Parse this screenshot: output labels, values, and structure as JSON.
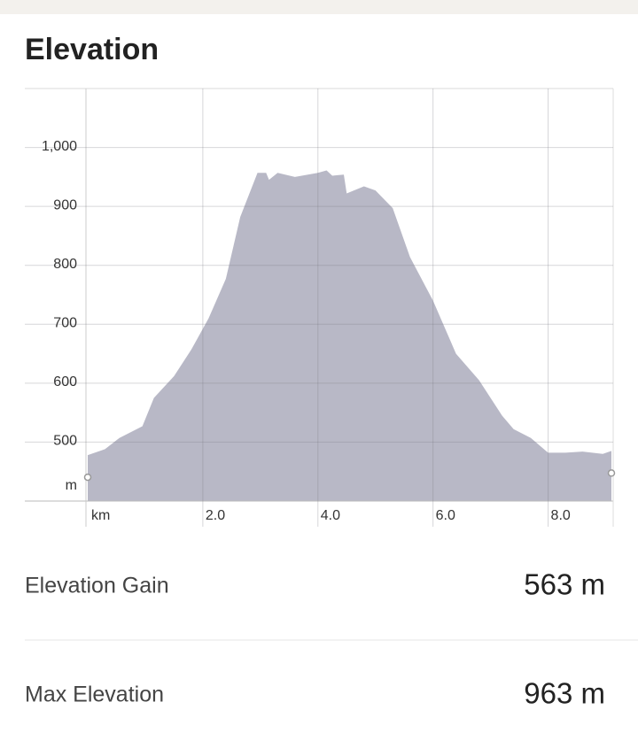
{
  "title": "Elevation",
  "chart_data": {
    "type": "area",
    "color": "#b8b8c6",
    "x_label": "km",
    "y_label": "m",
    "x": [
      0,
      0.3,
      0.55,
      0.95,
      1.15,
      1.5,
      1.8,
      2.1,
      2.4,
      2.65,
      2.95,
      3.1,
      3.15,
      3.3,
      3.6,
      4.0,
      4.15,
      4.25,
      4.45,
      4.5,
      4.8,
      5.0,
      5.3,
      5.6,
      6.0,
      6.4,
      6.8,
      7.2,
      7.4,
      7.7,
      8.0,
      8.3,
      8.6,
      8.95,
      9.1
    ],
    "values": [
      478,
      488,
      507,
      527,
      575,
      612,
      657,
      710,
      777,
      882,
      957,
      957,
      945,
      957,
      950,
      957,
      961,
      952,
      954,
      922,
      934,
      927,
      897,
      814,
      740,
      650,
      605,
      545,
      522,
      507,
      482,
      482,
      484,
      480,
      485
    ],
    "xlim": [
      0,
      9.1
    ],
    "ylim": [
      400,
      1100
    ],
    "xticks": [
      {
        "value": 2,
        "label": "2.0"
      },
      {
        "value": 4,
        "label": "4.0"
      },
      {
        "value": 6,
        "label": "6.0"
      },
      {
        "value": 8,
        "label": "8.0"
      }
    ],
    "yticks": [
      500,
      600,
      700,
      800,
      900,
      {
        "value": 1000,
        "label": "1,000"
      }
    ],
    "grid": true
  },
  "stats": [
    {
      "label": "Elevation Gain",
      "value": "563 m"
    },
    {
      "label": "Max Elevation",
      "value": "963 m"
    }
  ]
}
